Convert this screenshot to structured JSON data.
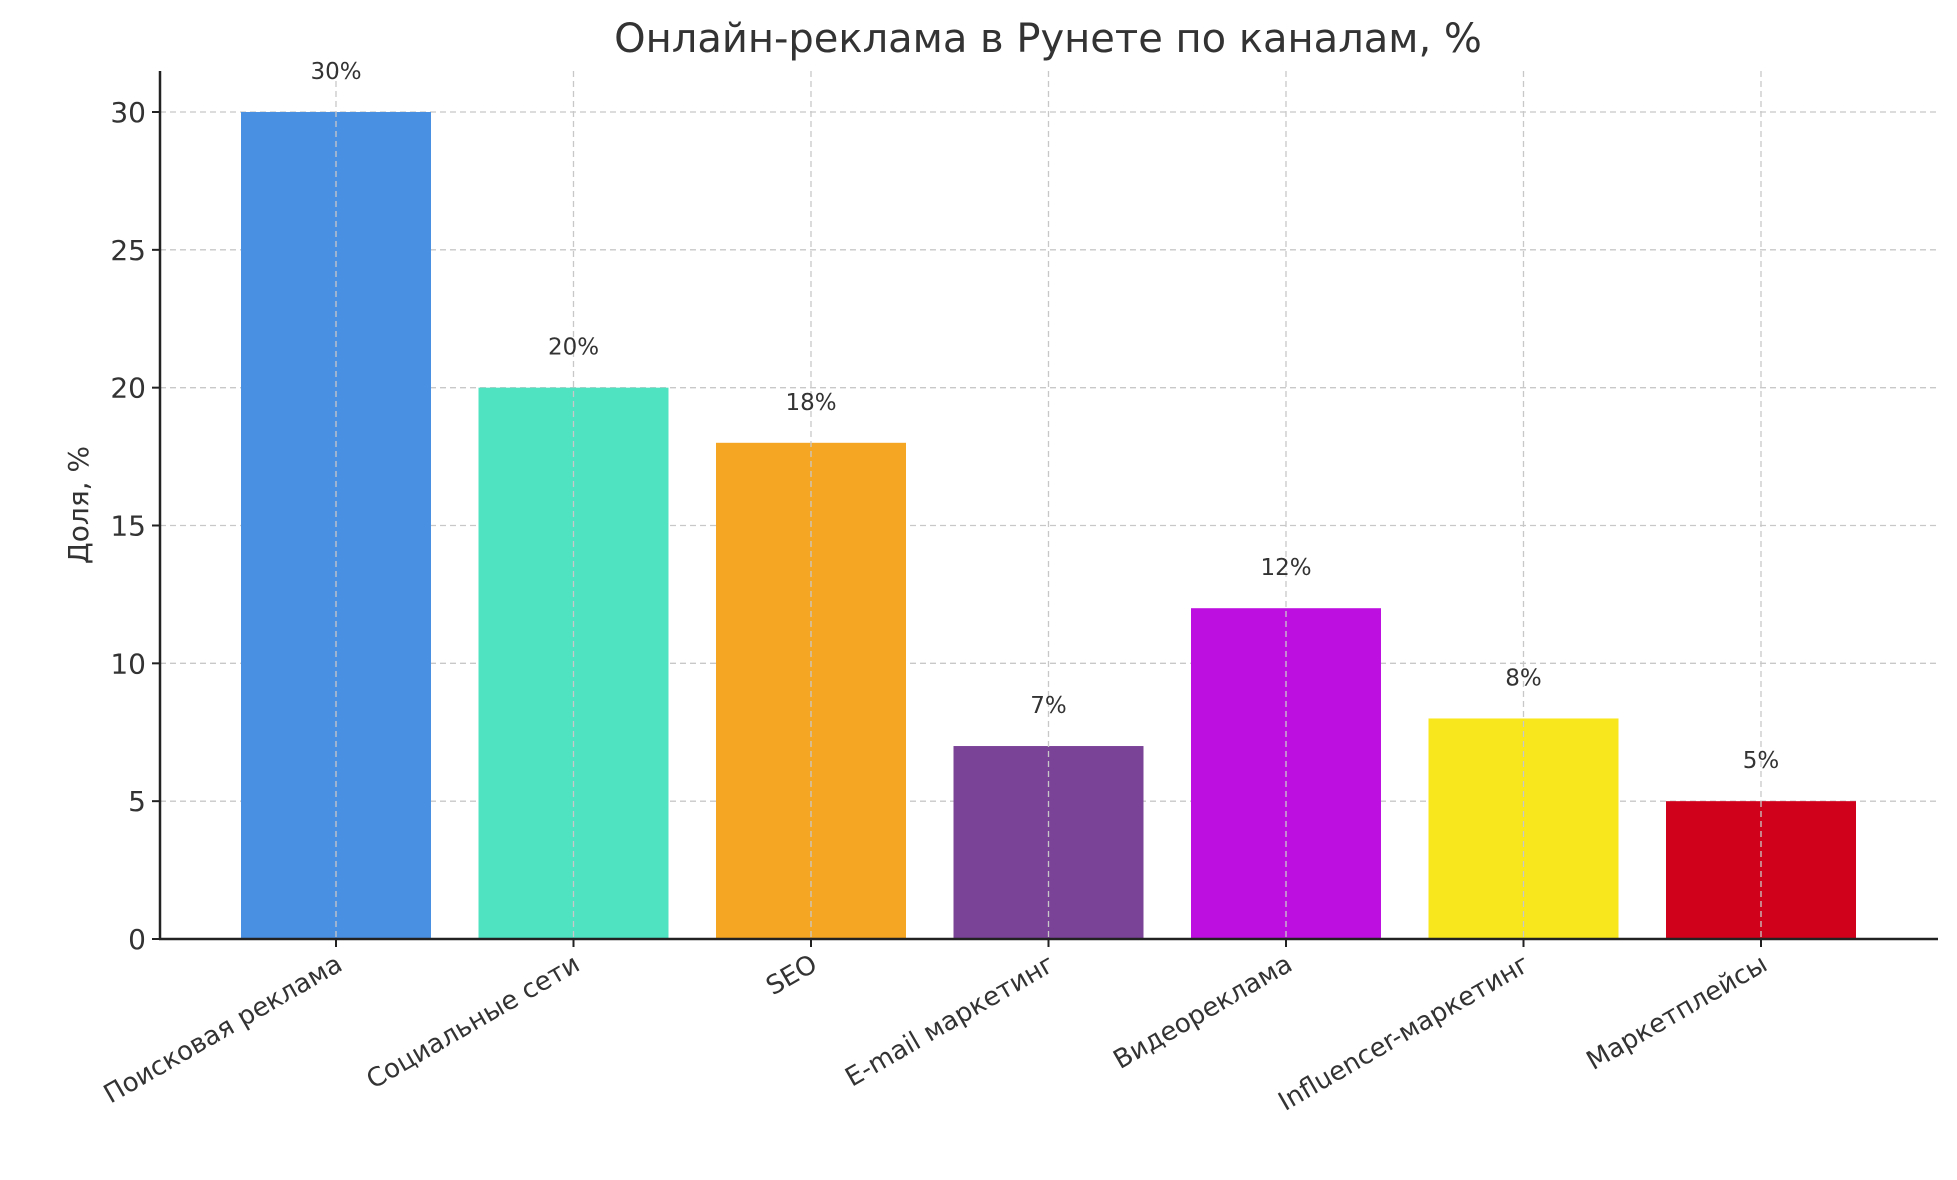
{
  "chart_data": {
    "type": "bar",
    "title": "Онлайн-реклама в Рунете по каналам, %",
    "xlabel": "",
    "ylabel": "Доля, %",
    "categories": [
      "Поисковая реклама",
      "Социальные сети",
      "SEO",
      "E-mail маркетинг",
      "Видеореклама",
      "Influencer-маркетинг",
      "Маркетплейсы"
    ],
    "values": [
      30,
      20,
      18,
      7,
      12,
      8,
      5
    ],
    "data_labels": [
      "30%",
      "20%",
      "18%",
      "7%",
      "12%",
      "8%",
      "5%"
    ],
    "colors": [
      "#4a90e2",
      "#50e3c2",
      "#f5a623",
      "#7b4397",
      "#bd10e0",
      "#f8e71c",
      "#d0021b"
    ],
    "yticks": [
      0,
      5,
      10,
      15,
      20,
      25,
      30
    ],
    "ylim": [
      0,
      31.5
    ],
    "grid": true,
    "grid_style": "dashed"
  }
}
